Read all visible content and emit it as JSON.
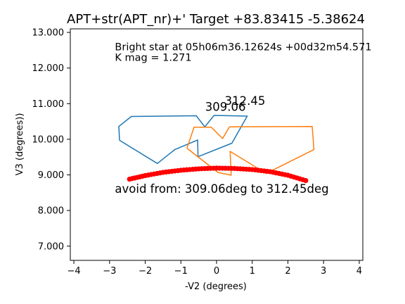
{
  "chart_data": {
    "type": "line",
    "title": "APT+str(APT_nr)+' Target +83.83415  -5.38624",
    "xlabel": "-V2 (degrees)",
    "ylabel": "V3 (degrees))",
    "xlim": [
      -4.1,
      4.1
    ],
    "ylim": [
      6.6,
      13.1
    ],
    "xticks": [
      -4,
      -3,
      -2,
      -1,
      0,
      1,
      2,
      3,
      4
    ],
    "xtick_labels": [
      "−4",
      "−3",
      "−2",
      "−1",
      "0",
      "1",
      "2",
      "3",
      "4"
    ],
    "yticks": [
      7,
      8,
      9,
      10,
      11,
      12,
      13
    ],
    "ytick_labels": [
      "7.000",
      "8.000",
      "9.000",
      "10.000",
      "11.000",
      "12.000",
      "13.000"
    ],
    "grid": false,
    "series": [
      {
        "color": "#1f77b4",
        "points": [
          [
            -2.72,
            9.97
          ],
          [
            -1.66,
            9.32
          ],
          [
            -1.17,
            9.71
          ],
          [
            -0.53,
            9.98
          ],
          [
            -0.52,
            9.51
          ],
          [
            0.43,
            9.89
          ],
          [
            0.86,
            10.65
          ],
          [
            -0.07,
            10.67
          ],
          [
            -0.33,
            10.35
          ],
          [
            -0.57,
            10.66
          ],
          [
            -2.39,
            10.64
          ],
          [
            -2.74,
            10.36
          ],
          [
            -2.72,
            9.97
          ]
        ]
      },
      {
        "color": "#ff7f0e",
        "points": [
          [
            -0.83,
            9.75
          ],
          [
            -0.63,
            10.34
          ],
          [
            -0.15,
            10.34
          ],
          [
            0.17,
            10.02
          ],
          [
            0.36,
            10.35
          ],
          [
            2.68,
            10.36
          ],
          [
            2.73,
            9.71
          ],
          [
            1.39,
            9.04
          ],
          [
            0.38,
            9.66
          ],
          [
            0.41,
            8.99
          ],
          [
            0.04,
            9.07
          ],
          [
            -0.83,
            9.75
          ]
        ]
      },
      {
        "color": "#ff0000",
        "style": "dots",
        "points": [
          [
            -2.44,
            8.88
          ],
          [
            -2.0,
            8.98
          ],
          [
            -1.5,
            9.07
          ],
          [
            -1.0,
            9.13
          ],
          [
            -0.5,
            9.17
          ],
          [
            0.0,
            9.19
          ],
          [
            0.5,
            9.18
          ],
          [
            1.0,
            9.15
          ],
          [
            1.5,
            9.09
          ],
          [
            2.0,
            8.99
          ],
          [
            2.5,
            8.84
          ]
        ]
      }
    ],
    "annotations": [
      {
        "text": "Bright star at   05h06m36.12624s +00d32m54.571",
        "x": -2.85,
        "y": 12.5,
        "size": "normal"
      },
      {
        "text": "K mag = 1.271",
        "x": -2.85,
        "y": 12.2,
        "size": "normal"
      },
      {
        "text": "312.45",
        "x": 0.23,
        "y": 10.97,
        "size": "large"
      },
      {
        "text": "309.06",
        "x": -0.32,
        "y": 10.8,
        "size": "large"
      },
      {
        "text": "avoid from: 309.06deg to 312.45deg",
        "x": -2.85,
        "y": 8.5,
        "size": "large"
      }
    ]
  }
}
